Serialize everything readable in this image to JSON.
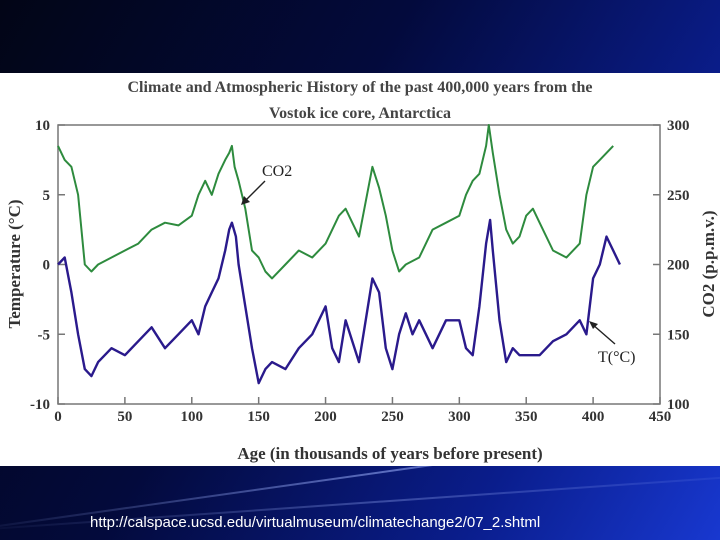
{
  "slide": {
    "source_url": "http://calspace.ucsd.edu/virtualmuseum/climatechange2/07_2.shtml"
  },
  "chart_data": {
    "type": "line",
    "title_line1": "Climate and Atmospheric History of the past 400,000 years from the",
    "title_line2": "Vostok ice core, Antarctica",
    "xlabel": "Age (in thousands of years before present)",
    "ylabel_left": "Temperature (°C)",
    "ylabel_right": "CO2 (p.p.m.v.)",
    "xlim": [
      0,
      450
    ],
    "ylim_left": [
      -10,
      10
    ],
    "ylim_right": [
      100,
      300
    ],
    "x_ticks": [
      "0",
      "50",
      "100",
      "150",
      "200",
      "250",
      "300",
      "350",
      "400",
      "450"
    ],
    "y_ticks_left": [
      "10",
      "5",
      "0",
      "-5",
      "-10"
    ],
    "y_ticks_right": [
      "300",
      "250",
      "200",
      "150",
      "100"
    ],
    "grid": false,
    "legend": "none",
    "annotations": [
      {
        "text": "CO2",
        "series": "co2",
        "x": 133,
        "y": 248
      },
      {
        "text": "T(°C)",
        "series": "temperature",
        "x": 395,
        "y": 160
      }
    ],
    "series": [
      {
        "id": "co2",
        "color": "#2e8b3e",
        "axis": "right",
        "x": [
          0,
          5,
          10,
          15,
          20,
          25,
          30,
          40,
          50,
          60,
          70,
          80,
          90,
          100,
          105,
          110,
          115,
          120,
          125,
          128,
          130,
          132,
          135,
          140,
          145,
          150,
          155,
          160,
          170,
          180,
          190,
          200,
          210,
          215,
          220,
          225,
          230,
          235,
          240,
          245,
          250,
          255,
          260,
          270,
          280,
          290,
          300,
          305,
          310,
          315,
          320,
          322,
          325,
          330,
          335,
          340,
          345,
          350,
          355,
          360,
          370,
          380,
          390,
          395,
          400,
          405,
          410,
          415
        ],
        "values": [
          285,
          275,
          270,
          250,
          200,
          195,
          200,
          205,
          210,
          215,
          225,
          230,
          228,
          235,
          250,
          260,
          250,
          265,
          275,
          280,
          285,
          270,
          260,
          240,
          210,
          205,
          195,
          190,
          200,
          210,
          205,
          215,
          235,
          240,
          230,
          220,
          245,
          270,
          255,
          235,
          210,
          195,
          200,
          205,
          225,
          230,
          235,
          250,
          260,
          265,
          285,
          300,
          280,
          250,
          225,
          215,
          220,
          235,
          240,
          230,
          210,
          205,
          215,
          250,
          270,
          275,
          280,
          285
        ]
      },
      {
        "id": "temperature",
        "color": "#2a1a8c",
        "axis": "left",
        "x": [
          0,
          5,
          8,
          10,
          15,
          20,
          25,
          30,
          40,
          50,
          60,
          70,
          80,
          90,
          100,
          105,
          110,
          115,
          120,
          125,
          128,
          130,
          133,
          135,
          140,
          145,
          150,
          155,
          160,
          170,
          180,
          190,
          200,
          205,
          210,
          215,
          220,
          225,
          230,
          235,
          240,
          245,
          250,
          255,
          260,
          265,
          270,
          280,
          290,
          300,
          305,
          310,
          315,
          320,
          323,
          325,
          330,
          335,
          340,
          345,
          350,
          360,
          370,
          380,
          390,
          395,
          400,
          405,
          410,
          415,
          420
        ],
        "values": [
          0,
          0.5,
          -1,
          -2,
          -5,
          -7.5,
          -8,
          -7,
          -6,
          -6.5,
          -5.5,
          -4.5,
          -6,
          -5,
          -4,
          -5,
          -3,
          -2,
          -1,
          1,
          2.5,
          3,
          2,
          0,
          -3,
          -6,
          -8.5,
          -7.5,
          -7,
          -7.5,
          -6,
          -5,
          -3,
          -6,
          -7,
          -4,
          -5.5,
          -7,
          -4,
          -1,
          -2,
          -6,
          -7.5,
          -5,
          -3.5,
          -5,
          -4,
          -6,
          -4,
          -4,
          -6,
          -6.5,
          -3,
          1.5,
          3.2,
          1,
          -4,
          -7,
          -6,
          -6.5,
          -6.5,
          -6.5,
          -5.5,
          -5,
          -4,
          -5,
          -1,
          0,
          2,
          1,
          0
        ]
      }
    ]
  }
}
